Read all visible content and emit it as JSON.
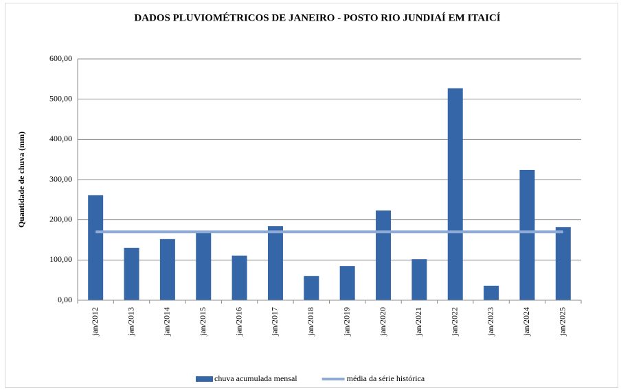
{
  "chart_data": {
    "type": "bar",
    "title": "DADOS PLUVIOMÉTRICOS DE JANEIRO - POSTO RIO JUNDIAÍ EM ITAICÍ",
    "y_label": "Quantidade de chuva (mm)",
    "categories": [
      "jan/2012",
      "jan/2013",
      "jan/2014",
      "jan/2015",
      "jan/2016",
      "jan/2017",
      "jan/2018",
      "jan/2019",
      "jan/2020",
      "jan/2021",
      "jan/2022",
      "jan/2023",
      "jan/2024",
      "jan/2025"
    ],
    "series": [
      {
        "name": "chuva acumulada mensal",
        "type": "bar",
        "color": "#3566a8",
        "values": [
          261,
          130,
          152,
          172,
          111,
          184,
          60,
          85,
          223,
          102,
          527,
          36,
          324,
          182
        ]
      },
      {
        "name": "média da série histórica",
        "type": "line",
        "color": "#8eaad6",
        "values": [
          170,
          170,
          170,
          170,
          170,
          170,
          170,
          170,
          170,
          170,
          170,
          170,
          170,
          170
        ]
      }
    ],
    "ylim": [
      0,
      600
    ],
    "yticks": [
      {
        "value": 0,
        "label": "0,00"
      },
      {
        "value": 100,
        "label": "100,00"
      },
      {
        "value": 200,
        "label": "200,00"
      },
      {
        "value": 300,
        "label": "300,00"
      },
      {
        "value": 400,
        "label": "400,00"
      },
      {
        "value": 500,
        "label": "500,00"
      },
      {
        "value": 600,
        "label": "600,00"
      }
    ],
    "grid": true,
    "legend": "bottom"
  }
}
